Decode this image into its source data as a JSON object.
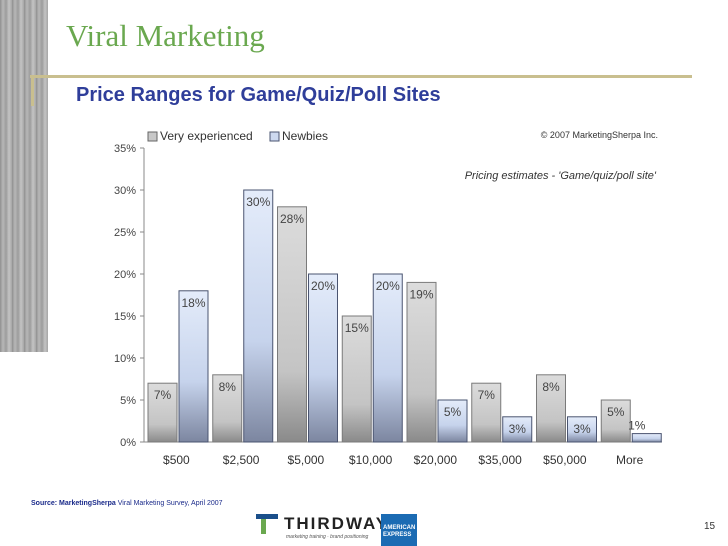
{
  "header": {
    "title": "Viral Marketing",
    "subtitle": "Price Ranges for Game/Quiz/Poll Sites"
  },
  "chart_data": {
    "type": "bar",
    "copyright": "© 2007 MarketingSherpa Inc.",
    "annotation": "Pricing estimates - 'Game/quiz/poll site'",
    "categories": [
      "$500",
      "$2,500",
      "$5,000",
      "$10,000",
      "$20,000",
      "$35,000",
      "$50,000",
      "More"
    ],
    "series": [
      {
        "name": "Very experienced",
        "values": [
          7,
          8,
          28,
          15,
          19,
          7,
          8,
          5
        ],
        "labels": [
          "7%",
          "8%",
          "28%",
          "15%",
          "19%",
          "7%",
          "8%",
          "5%"
        ]
      },
      {
        "name": "Newbies",
        "values": [
          18,
          30,
          20,
          20,
          5,
          3,
          3,
          1
        ],
        "labels": [
          "18%",
          "30%",
          "20%",
          "20%",
          "5%",
          "3%",
          "3%",
          "1%"
        ]
      }
    ],
    "yticks": [
      "0%",
      "5%",
      "10%",
      "15%",
      "20%",
      "25%",
      "30%",
      "35%"
    ],
    "ylim": [
      0,
      35
    ],
    "legend": "top-left",
    "colors": {
      "very_experienced": "#c8c8c8",
      "newbies": "#cdd9f0"
    }
  },
  "footer": {
    "source_label": "Source: MarketingSherpa",
    "source_text": "Viral Marketing Survey, April 2007",
    "logo_name": "THIRDWAY",
    "logo_tagline": "marketing training · brand positioning",
    "amex_line1": "AMERICAN",
    "amex_line2": "EXPRESS",
    "page_number": "15"
  }
}
